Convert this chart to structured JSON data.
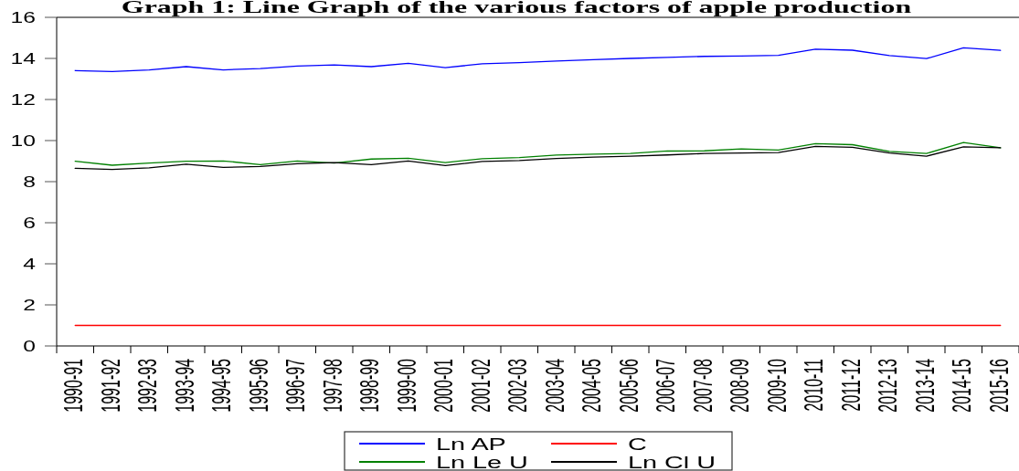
{
  "chart_data": {
    "type": "line",
    "title": "Graph 1: Line Graph of the various factors of apple production",
    "categories": [
      "1990-91",
      "1991-92",
      "1992-93",
      "1993-94",
      "1994-95",
      "1995-96",
      "1996-97",
      "1997-98",
      "1998-99",
      "1999-00",
      "2000-01",
      "2001-02",
      "2002-03",
      "2003-04",
      "2004-05",
      "2005-06",
      "2006-07",
      "2007-08",
      "2008-09",
      "2009-10",
      "2010-11",
      "2011-12",
      "2012-13",
      "2013-14",
      "2014-15",
      "2015-16"
    ],
    "series": [
      {
        "name": "Ln AP",
        "color": "#0000ff",
        "values": [
          13.41,
          13.36,
          13.44,
          13.6,
          13.44,
          13.51,
          13.63,
          13.68,
          13.6,
          13.76,
          13.55,
          13.74,
          13.79,
          13.87,
          13.94,
          14.0,
          14.05,
          14.1,
          14.12,
          14.15,
          14.45,
          14.4,
          14.14,
          13.99,
          14.52,
          14.39
        ]
      },
      {
        "name": "C",
        "color": "#ff0000",
        "values": [
          1,
          1,
          1,
          1,
          1,
          1,
          1,
          1,
          1,
          1,
          1,
          1,
          1,
          1,
          1,
          1,
          1,
          1,
          1,
          1,
          1,
          1,
          1,
          1,
          1,
          1
        ]
      },
      {
        "name": "Ln Le U",
        "color": "#008000",
        "values": [
          8.99,
          8.8,
          8.91,
          8.99,
          9.01,
          8.83,
          9.01,
          8.91,
          9.1,
          9.14,
          8.93,
          9.12,
          9.17,
          9.29,
          9.34,
          9.37,
          9.49,
          9.5,
          9.59,
          9.54,
          9.85,
          9.8,
          9.47,
          9.37,
          9.91,
          9.65
        ]
      },
      {
        "name": "Ln Cl U",
        "color": "#000000",
        "values": [
          8.65,
          8.59,
          8.67,
          8.85,
          8.69,
          8.74,
          8.87,
          8.93,
          8.83,
          9.01,
          8.78,
          8.98,
          9.03,
          9.13,
          9.19,
          9.24,
          9.3,
          9.37,
          9.39,
          9.42,
          9.72,
          9.67,
          9.39,
          9.24,
          9.69,
          9.65
        ]
      }
    ],
    "ylim": [
      0,
      16
    ],
    "yticks": [
      0,
      2,
      4,
      6,
      8,
      10,
      12,
      14,
      16
    ],
    "legend": "bottom"
  }
}
